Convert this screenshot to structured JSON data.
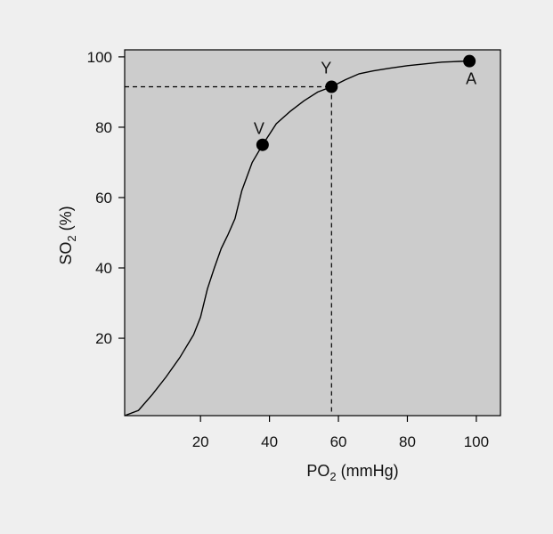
{
  "chart_data": {
    "type": "line",
    "xlabel": {
      "main": "PO",
      "sub": "2",
      "rest": " (mmHg)"
    },
    "ylabel": {
      "main": "SO",
      "sub": "2",
      "rest": " (%)"
    },
    "xlim": [
      -2,
      107
    ],
    "ylim": [
      -2,
      102
    ],
    "x_ticks": [
      20,
      40,
      60,
      80,
      100
    ],
    "x_tick_labels": [
      "20",
      "40",
      "60",
      "80",
      "100"
    ],
    "y_ticks": [
      20,
      40,
      60,
      80,
      100
    ],
    "y_tick_labels": [
      "20",
      "40",
      "60",
      "80",
      "100"
    ],
    "grid": false,
    "plot_background": "#cccccc",
    "page_background": "#efefef",
    "line_color": "#000000",
    "series": [
      {
        "x": [
          -2,
          2,
          6,
          10,
          14,
          18,
          20,
          22,
          24,
          26,
          28,
          30,
          32,
          35,
          38,
          42,
          46,
          50,
          54,
          58,
          62,
          66,
          70,
          75,
          80,
          85,
          90,
          95,
          98
        ],
        "y": [
          -2,
          -0.5,
          4,
          9,
          14.5,
          21,
          26,
          34,
          40,
          45.5,
          49.5,
          54,
          62,
          70,
          75,
          81,
          84.5,
          87.5,
          90,
          91.5,
          93.5,
          95.2,
          96,
          96.8,
          97.5,
          98,
          98.5,
          98.7,
          98.8
        ]
      }
    ],
    "points": [
      {
        "label": "V",
        "x": 38,
        "y": 75
      },
      {
        "label": "Y",
        "x": 58,
        "y": 91.5
      },
      {
        "label": "A",
        "x": 98,
        "y": 98.8
      }
    ],
    "reference_point_index": 1
  }
}
